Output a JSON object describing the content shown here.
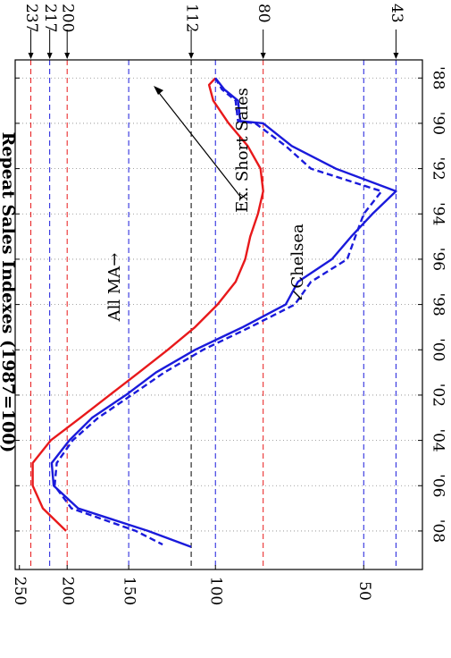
{
  "chart_data": {
    "type": "line",
    "ylabel": "Repeat Sales Indexes (1987=100)",
    "xlabel": "",
    "orientation": "rotated-90-clockwise",
    "y_scale": "log",
    "ylim": [
      38,
      255
    ],
    "xlim": [
      1987.2,
      2009.7
    ],
    "x_ticks": [
      {
        "value": 1988,
        "label": "'88"
      },
      {
        "value": 1990,
        "label": "'90"
      },
      {
        "value": 1992,
        "label": "'92"
      },
      {
        "value": 1994,
        "label": "'94"
      },
      {
        "value": 1996,
        "label": "'96"
      },
      {
        "value": 1998,
        "label": "'98"
      },
      {
        "value": 2000,
        "label": "'00"
      },
      {
        "value": 2002,
        "label": "'02"
      },
      {
        "value": 2004,
        "label": "'04"
      },
      {
        "value": 2006,
        "label": "'06"
      },
      {
        "value": 2008,
        "label": "'08"
      }
    ],
    "y_ticks": [
      {
        "value": 250,
        "label": "250"
      },
      {
        "value": 200,
        "label": "200"
      },
      {
        "value": 150,
        "label": "150"
      },
      {
        "value": 100,
        "label": "100"
      },
      {
        "value": 50,
        "label": "50"
      }
    ],
    "ref_lines": [
      {
        "value": 237,
        "label": "237",
        "color": "#e8191b"
      },
      {
        "value": 217,
        "label": "217",
        "color": "#1a1adb"
      },
      {
        "value": 200,
        "label": "200",
        "color": "#e8191b"
      },
      {
        "value": 150,
        "label": "",
        "color": "#1a1adb"
      },
      {
        "value": 112,
        "label": "112",
        "color": "#000000"
      },
      {
        "value": 100,
        "label": "",
        "color": "#1a1adb"
      },
      {
        "value": 80,
        "label": "80",
        "color": "#e8191b"
      },
      {
        "value": 50,
        "label": "",
        "color": "#1a1adb"
      },
      {
        "value": 43,
        "label": "43",
        "color": "#1a1adb"
      }
    ],
    "series": [
      {
        "name": "All MA",
        "color": "#e8191b",
        "style": "solid",
        "x": [
          1988,
          1988.3,
          1989,
          1990,
          1991,
          1992,
          1993,
          1994,
          1995,
          1996,
          1997,
          1998,
          1999,
          2000,
          2001,
          2002,
          2003,
          2004,
          2005,
          2006,
          2007,
          2008
        ],
        "values": [
          100,
          103,
          101,
          94,
          86,
          81,
          80,
          82,
          85,
          87,
          91,
          99,
          110,
          125,
          143,
          164,
          188,
          216,
          235,
          235,
          224,
          201
        ]
      },
      {
        "name": "Chelsea",
        "color": "#1a1adb",
        "style": "solid",
        "x": [
          1988,
          1988.5,
          1989,
          1989.9,
          1990,
          1991,
          1992,
          1993,
          1994,
          1995,
          1996,
          1997,
          1998,
          1999,
          2000,
          2001,
          2002,
          2003,
          2004,
          2005,
          2006,
          2007,
          2008,
          2008.7
        ],
        "values": [
          100,
          96,
          90,
          89,
          80,
          70,
          57,
          43,
          48,
          53,
          58,
          68,
          72,
          88,
          110,
          132,
          152,
          178,
          198,
          215,
          213,
          190,
          137,
          112
        ]
      },
      {
        "name": "Ex. Short Sales",
        "color": "#1a1adb",
        "style": "dashed",
        "x": [
          1988,
          1988.5,
          1989,
          1989.9,
          1990,
          1991,
          1992,
          1993,
          1994,
          1995,
          1996,
          1997,
          1998,
          1999,
          2000,
          2001,
          2002,
          2003,
          2004,
          2005,
          2006,
          2007,
          2008,
          2008.6
        ],
        "values": [
          100,
          97,
          91,
          90,
          83,
          72,
          64,
          46,
          50,
          52,
          54,
          64,
          69,
          85,
          106,
          127,
          148,
          173,
          195,
          210,
          212,
          196,
          145,
          128
        ]
      }
    ],
    "annotations": {
      "all_ma": "All MA→",
      "chelsea": "↙Chelsea",
      "ex_short_sales": "Ex. Short Sales"
    }
  }
}
